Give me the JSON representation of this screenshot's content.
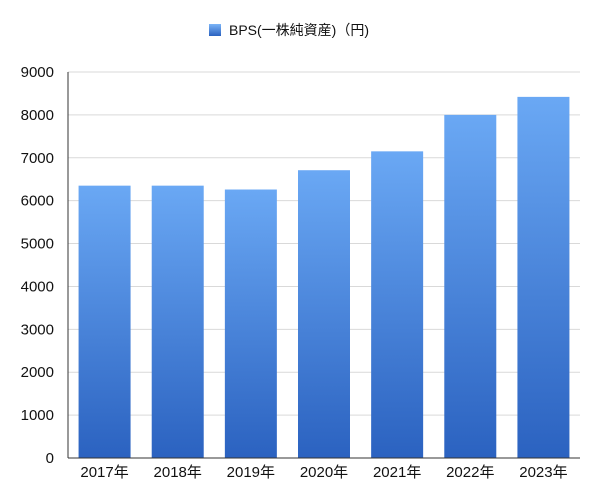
{
  "chart_data": {
    "type": "bar",
    "title": "",
    "xlabel": "",
    "ylabel": "",
    "categories": [
      "2017年",
      "2018年",
      "2019年",
      "2020年",
      "2021年",
      "2022年",
      "2023年"
    ],
    "series": [
      {
        "name": "BPS(一株純資産)（円)",
        "values": [
          6350,
          6350,
          6260,
          6710,
          7150,
          8000,
          8420
        ]
      }
    ],
    "ylim": [
      0,
      9000
    ],
    "yticks": [
      0,
      1000,
      2000,
      3000,
      4000,
      5000,
      6000,
      7000,
      8000,
      9000
    ],
    "grid": true,
    "legend_position": "top-center",
    "colors": {
      "bar_top": "#6aa8f4",
      "bar_bottom": "#2b62c0",
      "grid": "#d9d9d9",
      "axis": "#333333"
    }
  }
}
